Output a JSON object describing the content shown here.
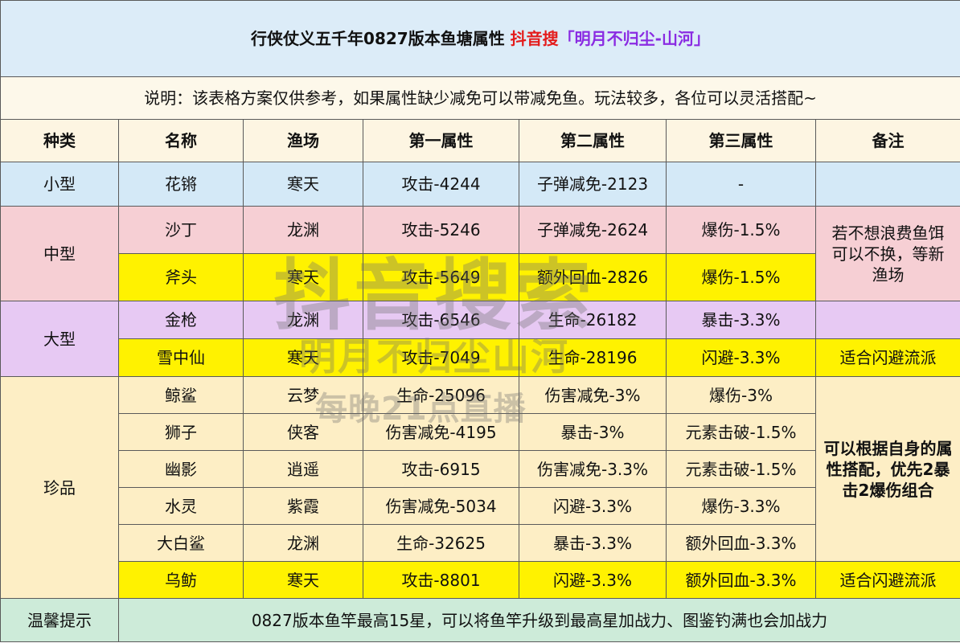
{
  "title": {
    "main": "行侠仗义五千年0827版本鱼塘属性",
    "platform": "抖音搜",
    "account": "「明月不归尘-山河」"
  },
  "note": "说明：该表格方案仅供参考，如果属性缺少减免可以带减免鱼。玩法较多，各位可以灵活搭配~",
  "headers": [
    "种类",
    "名称",
    "渔场",
    "第一属性",
    "第二属性",
    "第三属性",
    "备注"
  ],
  "categories": {
    "small": "小型",
    "medium": "中型",
    "large": "大型",
    "rare": "珍品"
  },
  "rows": [
    {
      "name": "花锵",
      "place": "寒天",
      "attr1": "攻击-4244",
      "attr2": "子弹减免-2123",
      "attr3": "-"
    },
    {
      "name": "沙丁",
      "place": "龙渊",
      "attr1": "攻击-5246",
      "attr2": "子弹减免-2624",
      "attr3": "爆伤-1.5%"
    },
    {
      "name": "斧头",
      "place": "寒天",
      "attr1": "攻击-5649",
      "attr2": "额外回血-2826",
      "attr3": "爆伤-1.5%"
    },
    {
      "name": "金枪",
      "place": "龙渊",
      "attr1": "攻击-6546",
      "attr2": "生命-26182",
      "attr3": "暴击-3.3%"
    },
    {
      "name": "雪中仙",
      "place": "寒天",
      "attr1": "攻击-7049",
      "attr2": "生命-28196",
      "attr3": "闪避-3.3%"
    },
    {
      "name": "鲸鲨",
      "place": "云梦",
      "attr1": "生命-25096",
      "attr2": "伤害减免-3%",
      "attr3": "爆伤-3%"
    },
    {
      "name": "狮子",
      "place": "侠客",
      "attr1": "伤害减免-4195",
      "attr2": "暴击-3%",
      "attr3": "元素击破-1.5%"
    },
    {
      "name": "幽影",
      "place": "逍遥",
      "attr1": "攻击-6915",
      "attr2": "伤害减免-3.3%",
      "attr3": "元素击破-1.5%"
    },
    {
      "name": "水灵",
      "place": "紫霞",
      "attr1": "伤害减免-5034",
      "attr2": "闪避-3.3%",
      "attr3": "爆伤-3.3%"
    },
    {
      "name": "大白鲨",
      "place": "龙渊",
      "attr1": "生命-32625",
      "attr2": "暴击-3.3%",
      "attr3": "额外回血-3.3%"
    },
    {
      "name": "乌鲂",
      "place": "寒天",
      "attr1": "攻击-8801",
      "attr2": "闪避-3.3%",
      "attr3": "额外回血-3.3%"
    }
  ],
  "remarks": {
    "medium": "若不想浪费鱼饵可以不换，等新渔场",
    "dodge1": "适合闪避流派",
    "rare": "可以根据自身的属性搭配，优先2暴击2爆伤组合",
    "dodge2": "适合闪避流派"
  },
  "footer": {
    "label": "温馨提示",
    "text": "0827版本鱼竿最高15星，可以将鱼竿升级到最高星加战力、图鉴钓满也会加战力"
  },
  "watermark": {
    "line1": "抖音搜索",
    "line2": "明月不归尘山河",
    "line3": "每晚21点直播"
  },
  "colors": {
    "title_bg": "#dcecf8",
    "small": "#d4e9f7",
    "medium": "#f6cfd4",
    "highlight": "#fff200",
    "large": "#e7c9f3",
    "rare": "#fdeec5",
    "footer": "#cdebd9",
    "title_red": "#e41b1b",
    "title_purple": "#8a2be2"
  }
}
